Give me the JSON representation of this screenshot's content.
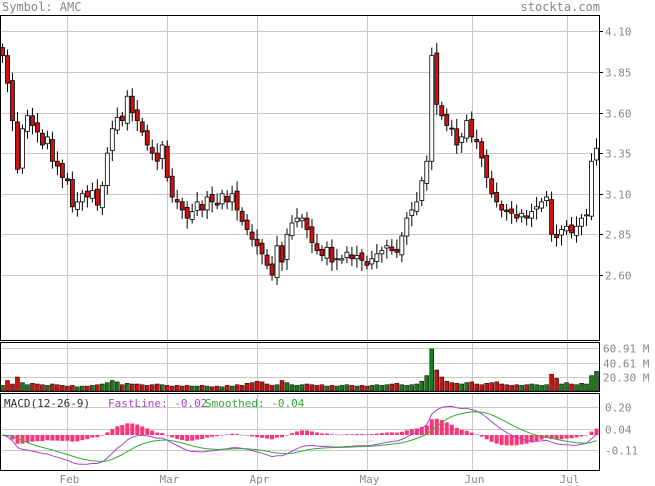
{
  "header": {
    "symbol_label": "Symbol: AMC",
    "site": "stockta.com"
  },
  "colors": {
    "up": "#1a7a1a",
    "down": "#cc1111",
    "grid": "#c8c8c8",
    "macd_fast": "#aa44cc",
    "macd_smooth": "#33aa33",
    "hist": "#ff3377",
    "text": "#888888"
  },
  "chart_data": [
    {
      "type": "candlestick",
      "title": "",
      "x_labels": [
        "Feb",
        "Mar",
        "Apr",
        "May",
        "Jun",
        "Jul"
      ],
      "x_label_index": [
        13,
        33,
        51,
        73,
        94,
        113
      ],
      "n": 120,
      "ylim": [
        2.2,
        4.2
      ],
      "yticks": [
        2.6,
        2.85,
        3.1,
        3.35,
        3.6,
        3.85,
        4.1
      ],
      "grid": true,
      "values": [
        3.95,
        3.78,
        3.55,
        3.25,
        3.5,
        3.58,
        3.52,
        3.48,
        3.4,
        3.45,
        3.3,
        3.27,
        3.2,
        3.18,
        3.02,
        3.05,
        3.1,
        3.08,
        3.12,
        3.03,
        3.15,
        3.35,
        3.5,
        3.57,
        3.55,
        3.7,
        3.6,
        3.55,
        3.48,
        3.4,
        3.35,
        3.3,
        3.4,
        3.2,
        3.08,
        3.05,
        3.0,
        2.95,
        2.99,
        3.05,
        3.0,
        3.08,
        3.05,
        3.03,
        3.1,
        3.05,
        3.1,
        3.0,
        2.93,
        2.88,
        2.82,
        2.78,
        2.73,
        2.66,
        2.6,
        2.78,
        2.68,
        2.85,
        2.92,
        2.95,
        2.95,
        2.88,
        2.8,
        2.75,
        2.72,
        2.77,
        2.68,
        2.7,
        2.7,
        2.74,
        2.7,
        2.72,
        2.69,
        2.66,
        2.7,
        2.73,
        2.75,
        2.78,
        2.75,
        2.74,
        2.84,
        2.95,
        3.0,
        3.05,
        3.18,
        3.3,
        3.95,
        3.65,
        3.58,
        3.52,
        3.5,
        3.4,
        3.45,
        3.55,
        3.45,
        3.42,
        3.32,
        3.2,
        3.1,
        3.05,
        3.0,
        2.99,
        2.98,
        2.95,
        2.98,
        2.95,
        2.99,
        3.02,
        3.05,
        3.08,
        2.85,
        2.83,
        2.88,
        2.9,
        2.86,
        2.9,
        2.95,
        2.97,
        3.3,
        3.38
      ],
      "volume_labels": [
        "60.91 M",
        "40.61 M",
        "20.30 M"
      ],
      "volume_max_m": 70,
      "volume_ticks_m": [
        60.91,
        40.61,
        20.3
      ],
      "volumes_m": [
        8,
        15,
        10,
        20,
        12,
        9,
        11,
        10,
        9,
        8,
        10,
        9,
        8,
        7,
        8,
        6,
        7,
        7,
        8,
        9,
        10,
        12,
        15,
        13,
        9,
        11,
        10,
        10,
        9,
        8,
        9,
        10,
        9,
        8,
        7,
        8,
        7,
        8,
        7,
        7,
        8,
        7,
        6,
        7,
        6,
        8,
        7,
        9,
        8,
        11,
        12,
        14,
        13,
        10,
        8,
        9,
        15,
        12,
        9,
        8,
        9,
        10,
        9,
        8,
        9,
        7,
        8,
        7,
        8,
        9,
        8,
        7,
        8,
        7,
        8,
        9,
        8,
        9,
        10,
        11,
        9,
        8,
        9,
        10,
        14,
        22,
        60,
        30,
        20,
        14,
        12,
        11,
        10,
        12,
        13,
        10,
        9,
        11,
        12,
        13,
        10,
        9,
        8,
        9,
        8,
        9,
        10,
        9,
        8,
        9,
        24,
        18,
        10,
        12,
        10,
        9,
        11,
        10,
        22,
        28
      ]
    },
    {
      "type": "line",
      "title": "MACD(12-26-9)",
      "series": [
        {
          "name": "FastLine: -0.02",
          "color": "#aa44cc"
        },
        {
          "name": "Smoothed: -0.04",
          "color": "#33aa33"
        }
      ],
      "yticks": [
        0.2,
        0.04,
        -0.11
      ],
      "ylim": [
        -0.25,
        0.3
      ]
    }
  ]
}
